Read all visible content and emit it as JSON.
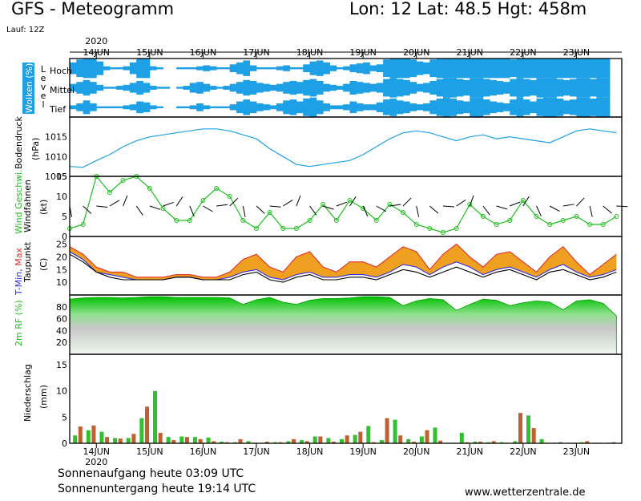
{
  "header": {
    "title": "GFS - Meteogramm",
    "location": "Lon: 12  Lat: 48.5  Hgt: 458m",
    "run": "Lauf: 12Z"
  },
  "footer": {
    "sunrise": "Sonnenaufgang heute 03:09 UTC",
    "sunset": "Sonnenuntergang heute 19:14 UTC",
    "credit": "www.wetterzentrale.de"
  },
  "colors": {
    "cloud": "#1ea0e6",
    "pressure": "#1ea0e6",
    "wind": "#20c020",
    "tmin": "#3030e0",
    "tmax": "#e03030",
    "dewpoint": "#000000",
    "temp_fill": "#f0a020",
    "rh": "#20c020",
    "precip_a": "#30c030",
    "precip_b": "#c06030"
  },
  "chart_data": [
    {
      "type": "heatmap",
      "name": "clouds",
      "title": "Wolken (%)",
      "levels": [
        "Hoch",
        "Mittel",
        "Tief"
      ],
      "level_word": "Level",
      "x_labels": [
        "14JUN",
        "15JUN",
        "16JUN",
        "17JUN",
        "18JUN",
        "19JUN",
        "20JUN",
        "21JUN",
        "22JUN",
        "23JUN"
      ],
      "year": "2020",
      "start_day": 13.5,
      "step_days": 0.125,
      "note": "cloud fraction per level (0-100) every 3h",
      "hoch": [
        60,
        90,
        100,
        100,
        70,
        20,
        10,
        10,
        20,
        60,
        100,
        100,
        20,
        10,
        0,
        0,
        10,
        10,
        10,
        20,
        30,
        20,
        10,
        10,
        40,
        60,
        80,
        30,
        10,
        10,
        10,
        20,
        30,
        10,
        10,
        40,
        70,
        80,
        60,
        30,
        10,
        20,
        40,
        50,
        60,
        30,
        40,
        90,
        100,
        100,
        100,
        90,
        70,
        60,
        90,
        100,
        100,
        100,
        100,
        100,
        100,
        100,
        100,
        100,
        100,
        100,
        90,
        100,
        100,
        100,
        100,
        100,
        100,
        100,
        100,
        100,
        100,
        100,
        100,
        100,
        100
      ],
      "mittel": [
        40,
        60,
        80,
        60,
        30,
        10,
        10,
        20,
        30,
        50,
        70,
        50,
        20,
        10,
        10,
        0,
        10,
        20,
        50,
        60,
        40,
        20,
        10,
        20,
        40,
        60,
        80,
        70,
        50,
        40,
        30,
        40,
        60,
        70,
        60,
        80,
        90,
        70,
        40,
        30,
        20,
        40,
        70,
        60,
        50,
        40,
        50,
        90,
        100,
        90,
        80,
        60,
        40,
        50,
        70,
        90,
        100,
        100,
        90,
        80,
        100,
        100,
        90,
        80,
        70,
        60,
        90,
        100,
        90,
        80,
        100,
        100,
        100,
        90,
        80,
        90,
        100,
        100,
        90,
        100,
        100
      ],
      "tief": [
        20,
        40,
        70,
        40,
        10,
        10,
        10,
        10,
        20,
        30,
        60,
        50,
        20,
        10,
        0,
        0,
        10,
        10,
        20,
        40,
        20,
        10,
        10,
        10,
        30,
        60,
        80,
        60,
        40,
        30,
        20,
        40,
        70,
        80,
        60,
        90,
        100,
        70,
        40,
        20,
        20,
        30,
        60,
        40,
        30,
        30,
        50,
        80,
        90,
        70,
        60,
        40,
        30,
        40,
        70,
        90,
        100,
        90,
        70,
        60,
        100,
        100,
        80,
        60,
        50,
        40,
        80,
        100,
        80,
        60,
        90,
        100,
        100,
        90,
        70,
        80,
        100,
        100,
        90,
        100,
        100
      ]
    },
    {
      "type": "line",
      "name": "pressure",
      "ylabel": "Bodendruck (hPa)",
      "ylim": [
        1005,
        1020
      ],
      "yticks": [
        1005,
        1010,
        1015
      ],
      "x_days": [
        13.5,
        13.75,
        14.0,
        14.25,
        14.5,
        14.75,
        15.0,
        15.25,
        15.5,
        15.75,
        16.0,
        16.25,
        16.5,
        16.75,
        17.0,
        17.25,
        17.5,
        17.75,
        18.0,
        18.25,
        18.5,
        18.75,
        19.0,
        19.25,
        19.5,
        19.75,
        20.0,
        20.25,
        20.5,
        20.75,
        21.0,
        21.25,
        21.5,
        21.75,
        22.0,
        22.25,
        22.5,
        22.75,
        23.0,
        23.25,
        23.5,
        23.75
      ],
      "values": [
        1007.5,
        1007.3,
        1009,
        1010.5,
        1012.5,
        1014,
        1015,
        1015.5,
        1016,
        1016.5,
        1017,
        1017,
        1016.5,
        1015.5,
        1014.5,
        1012,
        1010,
        1008,
        1007.5,
        1008,
        1008.5,
        1009,
        1010.5,
        1012.5,
        1014.5,
        1016,
        1016.5,
        1016,
        1015,
        1014,
        1015,
        1015.5,
        1014.5,
        1015,
        1014.5,
        1014,
        1013.5,
        1015,
        1016.5,
        1017,
        1016.5,
        1016
      ]
    },
    {
      "type": "line",
      "name": "wind",
      "ylabel": "Wind Geschwi. (kt)",
      "ylabel2": "Windfahnen",
      "ylim": [
        0,
        15
      ],
      "yticks": [
        0,
        5,
        10,
        15
      ],
      "x_days": [
        13.5,
        13.75,
        14.0,
        14.25,
        14.5,
        14.75,
        15.0,
        15.25,
        15.5,
        15.75,
        16.0,
        16.25,
        16.5,
        16.75,
        17.0,
        17.25,
        17.5,
        17.75,
        18.0,
        18.25,
        18.5,
        18.75,
        19.0,
        19.25,
        19.5,
        19.75,
        20.0,
        20.25,
        20.5,
        20.75,
        21.0,
        21.25,
        21.5,
        21.75,
        22.0,
        22.25,
        22.5,
        22.75,
        23.0,
        23.25,
        23.5,
        23.75
      ],
      "values": [
        2,
        3,
        15,
        11,
        14,
        15,
        12,
        7,
        4,
        4,
        9,
        12,
        10,
        4,
        2,
        6,
        2,
        2,
        4,
        8,
        4,
        9,
        7,
        4,
        8,
        6,
        3,
        2,
        1,
        2,
        8,
        5,
        3,
        4,
        9,
        5,
        3,
        4,
        5,
        3,
        3,
        5
      ]
    },
    {
      "type": "area",
      "name": "temperature",
      "ylabel": "T-Min, Max",
      "ylabel2": "Taupunkt (C)",
      "ylim": [
        5,
        28
      ],
      "yticks": [
        10,
        15,
        20,
        25
      ],
      "x_days": [
        13.5,
        13.75,
        14.0,
        14.25,
        14.5,
        14.75,
        15.0,
        15.25,
        15.5,
        15.75,
        16.0,
        16.25,
        16.5,
        16.75,
        17.0,
        17.25,
        17.5,
        17.75,
        18.0,
        18.25,
        18.5,
        18.75,
        19.0,
        19.25,
        19.5,
        19.75,
        20.0,
        20.25,
        20.5,
        20.75,
        21.0,
        21.25,
        21.5,
        21.75,
        22.0,
        22.25,
        22.5,
        22.75,
        23.0,
        23.25,
        23.5,
        23.75
      ],
      "tmax": [
        24,
        21,
        16,
        14,
        14,
        12,
        12,
        12,
        13,
        13,
        12,
        12,
        14,
        19,
        21,
        16,
        14,
        20,
        22,
        16,
        14,
        18,
        18,
        16,
        20,
        24,
        22,
        15,
        21,
        25,
        20,
        16,
        21,
        22,
        18,
        14,
        20,
        24,
        18,
        13,
        17,
        21
      ],
      "tmin": [
        22,
        19,
        14,
        13,
        12,
        11,
        11,
        11,
        12,
        12,
        11,
        11,
        12,
        14,
        15,
        12,
        11,
        13,
        14,
        12,
        12,
        13,
        13,
        12,
        14,
        17,
        16,
        13,
        16,
        18,
        16,
        13,
        15,
        16,
        14,
        12,
        15,
        17,
        14,
        12,
        13,
        15
      ],
      "dewpoint": [
        21,
        18,
        14,
        12,
        11,
        11,
        11,
        11,
        12,
        12,
        11,
        11,
        11,
        13,
        14,
        11,
        10,
        12,
        13,
        11,
        11,
        12,
        12,
        11,
        13,
        15,
        14,
        12,
        14,
        16,
        14,
        12,
        14,
        15,
        13,
        11,
        14,
        15,
        13,
        11,
        12,
        14
      ]
    },
    {
      "type": "area",
      "name": "humidity",
      "ylabel": "2m RF (%)",
      "ylim": [
        0,
        100
      ],
      "yticks": [
        20,
        40,
        60,
        80
      ],
      "x_days": [
        13.5,
        13.75,
        14.0,
        14.25,
        14.5,
        14.75,
        15.0,
        15.25,
        15.5,
        15.75,
        16.0,
        16.25,
        16.5,
        16.75,
        17.0,
        17.25,
        17.5,
        17.75,
        18.0,
        18.25,
        18.5,
        18.75,
        19.0,
        19.25,
        19.5,
        19.75,
        20.0,
        20.25,
        20.5,
        20.75,
        21.0,
        21.25,
        21.5,
        21.75,
        22.0,
        22.25,
        22.5,
        22.75,
        23.0,
        23.25,
        23.5,
        23.75
      ],
      "values": [
        93,
        95,
        96,
        96,
        95,
        96,
        97,
        97,
        96,
        96,
        96,
        96,
        95,
        84,
        92,
        96,
        88,
        84,
        91,
        94,
        94,
        95,
        97,
        97,
        96,
        82,
        90,
        94,
        92,
        74,
        84,
        93,
        91,
        82,
        87,
        90,
        88,
        75,
        90,
        92,
        86,
        65
      ]
    },
    {
      "type": "bar",
      "name": "precipitation",
      "ylabel": "Niederschlag (mm)",
      "ylim": [
        0,
        17
      ],
      "yticks": [
        0,
        5,
        10,
        15
      ],
      "x_days": [
        13.6,
        13.7,
        13.85,
        13.95,
        14.1,
        14.2,
        14.35,
        14.45,
        14.6,
        14.7,
        14.85,
        14.95,
        15.1,
        15.2,
        15.35,
        15.45,
        15.6,
        15.7,
        15.85,
        15.95,
        16.1,
        16.2,
        16.35,
        16.45,
        16.6,
        16.7,
        16.85,
        16.95,
        17.1,
        17.2,
        17.35,
        17.45,
        17.6,
        17.7,
        17.85,
        17.95,
        18.1,
        18.2,
        18.35,
        18.45,
        18.6,
        18.7,
        18.85,
        18.95,
        19.1,
        19.2,
        19.35,
        19.45,
        19.6,
        19.7,
        19.85,
        19.95,
        20.1,
        20.2,
        20.35,
        20.45,
        20.6,
        20.7,
        20.85,
        20.95,
        21.1,
        21.2,
        21.35,
        21.45,
        21.6,
        21.7,
        21.85,
        21.95,
        22.1,
        22.2,
        22.35,
        22.45,
        22.6,
        22.7,
        22.85,
        22.95,
        23.1,
        23.2,
        23.35,
        23.45,
        23.6,
        23.7
      ],
      "values": [
        1.5,
        3.2,
        2.5,
        3.4,
        2.2,
        1.2,
        1.0,
        0.9,
        1.0,
        1.8,
        4.8,
        7.0,
        10.0,
        2.0,
        1.2,
        0.6,
        1.3,
        1.2,
        1.2,
        0.8,
        1.1,
        0.4,
        0.3,
        0.2,
        0.2,
        0.8,
        0.4,
        0.1,
        0.1,
        0.3,
        0.2,
        0.2,
        0.4,
        0.8,
        0.6,
        0.4,
        1.3,
        1.3,
        1.0,
        0.3,
        0.8,
        1.5,
        1.6,
        2.2,
        3.3,
        0.2,
        0.6,
        4.8,
        4.5,
        1.5,
        0.8,
        0.3,
        1.3,
        2.5,
        3.0,
        0.5,
        0.1,
        0.1,
        2.0,
        0.2,
        0.3,
        0.3,
        0.2,
        0.4,
        0.2,
        0.1,
        0.4,
        5.8,
        5.3,
        2.9,
        0.8,
        0.1,
        0.1,
        0.2,
        0.1,
        0.1,
        0.2,
        0.4,
        0.1,
        0.1,
        0.1,
        0.2
      ]
    }
  ]
}
